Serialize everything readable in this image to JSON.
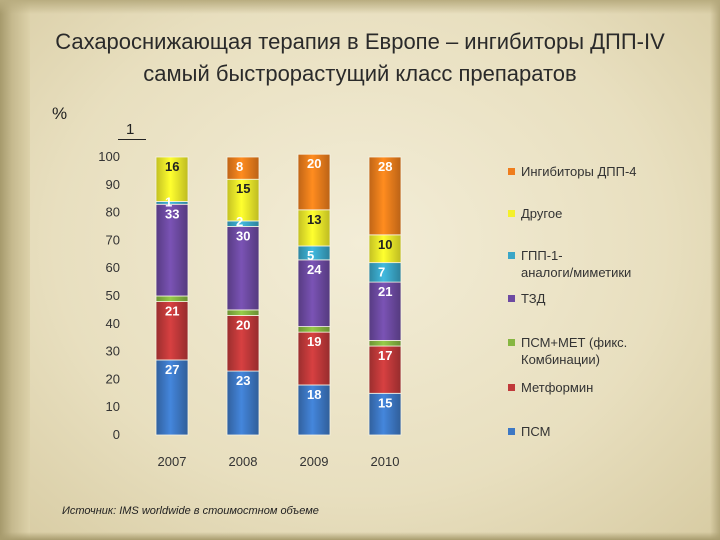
{
  "slide": {
    "title": "Сахароснижающая терапия в Европе – ингибиторы ДПП-IV самый быстрорастущий класс препаратов",
    "y_unit_label": "%",
    "note_mark": "1",
    "source": "Источник: IMS worldwide в стоимостном объеме"
  },
  "chart_data": {
    "type": "bar",
    "stacked": true,
    "categories": [
      "2007",
      "2008",
      "2009",
      "2010"
    ],
    "ylim": [
      0,
      100
    ],
    "yticks": [
      0,
      10,
      20,
      30,
      40,
      50,
      60,
      70,
      80,
      90,
      100
    ],
    "ylabel": "%",
    "xlabel": "",
    "title": "",
    "legend_position": "right",
    "grid": false,
    "series": [
      {
        "name": "ПСМ",
        "color": "#3d78c4",
        "values": [
          27,
          23,
          18,
          15
        ],
        "labels": [
          "27",
          "23",
          "18",
          "15"
        ]
      },
      {
        "name": "Метформин",
        "color": "#c0393a",
        "values": [
          21,
          20,
          19,
          17
        ],
        "labels": [
          "21",
          "20",
          "19",
          "17"
        ]
      },
      {
        "name": "ПСМ+МЕТ (фикс. Комбинации)",
        "color": "#86b641",
        "values": [
          2,
          2,
          2,
          2
        ],
        "labels": [
          "",
          "",
          "",
          ""
        ]
      },
      {
        "name": "ТЗД",
        "color": "#6d4aa2",
        "values": [
          33,
          30,
          24,
          21
        ],
        "labels": [
          "33",
          "30",
          "24",
          "21"
        ]
      },
      {
        "name": "ГПП-1-аналоги/миметики",
        "color": "#3aa6c7",
        "values": [
          1,
          2,
          5,
          7
        ],
        "labels": [
          "1",
          "2",
          "5",
          "7"
        ]
      },
      {
        "name": "Другое",
        "color": "#f4f02a",
        "values": [
          16,
          15,
          13,
          10
        ],
        "labels": [
          "16",
          "15",
          "13",
          "10"
        ]
      },
      {
        "name": "Ингибиторы ДПП-4",
        "color": "#ef7d1c",
        "values": [
          0,
          8,
          20,
          28
        ],
        "labels": [
          "",
          "8",
          "20",
          "28"
        ]
      }
    ],
    "legend": [
      {
        "lines": [
          "Ингибиторы ДПП-4"
        ],
        "color": "#ef7d1c"
      },
      {
        "lines": [
          "Другое"
        ],
        "color": "#f4f02a"
      },
      {
        "lines": [
          "ГПП-1-",
          "аналоги/миметики"
        ],
        "color": "#3aa6c7"
      },
      {
        "lines": [
          "ТЗД"
        ],
        "color": "#6d4aa2"
      },
      {
        "lines": [
          "ПСМ+МЕТ (фикс.",
          "Комбинации)"
        ],
        "color": "#86b641"
      },
      {
        "lines": [
          "Метформин"
        ],
        "color": "#c0393a"
      },
      {
        "lines": [
          "ПСМ"
        ],
        "color": "#3d78c4"
      }
    ]
  }
}
